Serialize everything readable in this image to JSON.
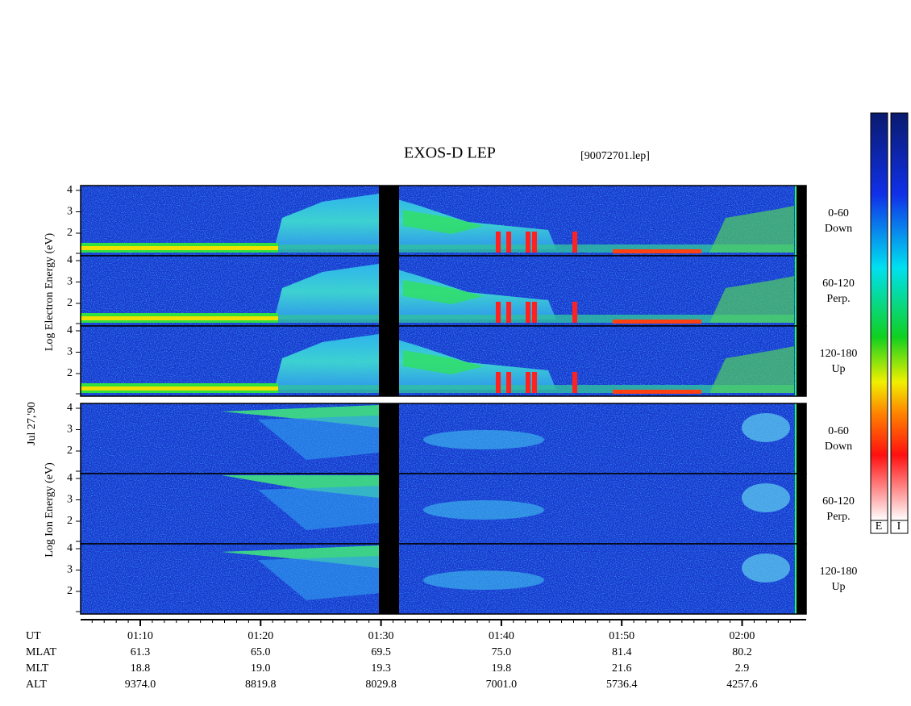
{
  "title": "EXOS-D LEP",
  "file": "[90072701.lep]",
  "date": "Jul 27,'90",
  "electron_axis_label": "Log Electron Energy (eV)",
  "ion_axis_label": "Log Ion Energy (eV)",
  "yticks": [
    2,
    3,
    4
  ],
  "panels": [
    {
      "range": "0-60",
      "direction": "Down"
    },
    {
      "range": "60-120",
      "direction": "Perp."
    },
    {
      "range": "120-180",
      "direction": "Up"
    },
    {
      "range": "0-60",
      "direction": "Down"
    },
    {
      "range": "60-120",
      "direction": "Perp."
    },
    {
      "range": "120-180",
      "direction": "Up"
    }
  ],
  "colorbar_labels": [
    "E",
    "I"
  ],
  "table": {
    "rows": [
      [
        "UT",
        "01:10",
        "01:20",
        "01:30",
        "01:40",
        "01:50",
        "02:00"
      ],
      [
        "MLAT",
        "61.3",
        "65.0",
        "69.5",
        "75.0",
        "81.4",
        "80.2"
      ],
      [
        "MLT",
        "18.8",
        "19.0",
        "19.3",
        "19.8",
        "21.6",
        "2.9"
      ],
      [
        "ALT",
        "9374.0",
        "8819.8",
        "8029.8",
        "7001.0",
        "5736.4",
        "4257.6"
      ]
    ]
  }
}
